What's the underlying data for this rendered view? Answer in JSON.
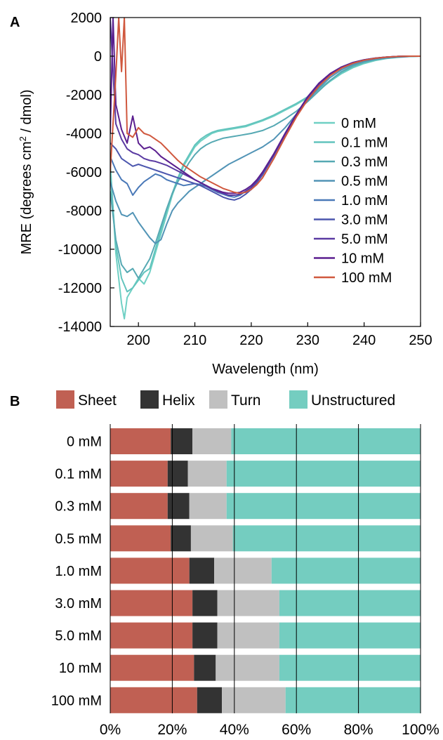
{
  "chart_data": [
    {
      "panel_label": "A",
      "type": "line",
      "xlabel": "Wavelength (nm)",
      "ylabel_main": "MRE (degrees cm",
      "ylabel_sup": "2",
      "ylabel_tail": " / dmol)",
      "xlim": [
        195,
        250
      ],
      "ylim": [
        -14000,
        2000
      ],
      "xticks": [
        200,
        210,
        220,
        230,
        240,
        250
      ],
      "yticks": [
        2000,
        0,
        -2000,
        -4000,
        -6000,
        -8000,
        -10000,
        -12000,
        -14000
      ],
      "grid": false,
      "legend_position": "right",
      "series": [
        {
          "name": "0 mM",
          "color": "#6fd0c4",
          "x": [
            195,
            196,
            197,
            197.5,
            198,
            199,
            200,
            201,
            202,
            203,
            204,
            205,
            206,
            207,
            208,
            209,
            210,
            211,
            212,
            213,
            214,
            215,
            216,
            217,
            218,
            219,
            220,
            222,
            224,
            226,
            228,
            230,
            232,
            234,
            236,
            238,
            240,
            242,
            244,
            246,
            248,
            250
          ],
          "y": [
            -5500,
            -10200,
            -12800,
            -13600,
            -12500,
            -12000,
            -11500,
            -11800,
            -11200,
            -10200,
            -9200,
            -8200,
            -7200,
            -6400,
            -5700,
            -5200,
            -4700,
            -4400,
            -4200,
            -4000,
            -3900,
            -3850,
            -3800,
            -3750,
            -3700,
            -3650,
            -3550,
            -3350,
            -3100,
            -2800,
            -2500,
            -2150,
            -1750,
            -1300,
            -900,
            -600,
            -380,
            -220,
            -120,
            -60,
            -20,
            0
          ]
        },
        {
          "name": "0.1 mM",
          "color": "#62c4bd",
          "x": [
            195,
            196,
            197,
            198,
            199,
            200,
            201,
            202,
            203,
            204,
            205,
            206,
            207,
            208,
            209,
            210,
            211,
            212,
            213,
            214,
            215,
            216,
            217,
            218,
            219,
            220,
            222,
            224,
            226,
            228,
            230,
            232,
            234,
            236,
            238,
            240,
            242,
            244,
            246,
            248,
            250
          ],
          "y": [
            -6000,
            -9800,
            -11500,
            -12200,
            -12000,
            -11600,
            -11200,
            -11000,
            -10000,
            -9000,
            -8000,
            -7100,
            -6300,
            -5600,
            -5100,
            -4600,
            -4300,
            -4100,
            -3950,
            -3850,
            -3800,
            -3750,
            -3700,
            -3650,
            -3600,
            -3500,
            -3300,
            -3050,
            -2750,
            -2450,
            -2100,
            -1700,
            -1250,
            -850,
            -560,
            -350,
            -200,
            -110,
            -50,
            -15,
            0
          ]
        },
        {
          "name": "0.3 mM",
          "color": "#56a9b3",
          "x": [
            195,
            196,
            197,
            198,
            199,
            200,
            201,
            202,
            203,
            204,
            205,
            206,
            207,
            208,
            209,
            210,
            211,
            212,
            213,
            214,
            215,
            216,
            217,
            218,
            219,
            220,
            222,
            224,
            226,
            228,
            230,
            232,
            234,
            236,
            238,
            240,
            242,
            244,
            246,
            248,
            250
          ],
          "y": [
            -7000,
            -9500,
            -10800,
            -11200,
            -11000,
            -11500,
            -11000,
            -10500,
            -9700,
            -8800,
            -7900,
            -7100,
            -6500,
            -6000,
            -5500,
            -5100,
            -4800,
            -4600,
            -4450,
            -4350,
            -4250,
            -4200,
            -4150,
            -4100,
            -4050,
            -4000,
            -3850,
            -3600,
            -3250,
            -2850,
            -2350,
            -1800,
            -1250,
            -800,
            -500,
            -300,
            -170,
            -90,
            -40,
            -10,
            0
          ]
        },
        {
          "name": "0.5 mM",
          "color": "#5294b6",
          "x": [
            195,
            196,
            197,
            198,
            199,
            200,
            201,
            202,
            203,
            204,
            205,
            206,
            207,
            208,
            209,
            210,
            211,
            212,
            213,
            214,
            215,
            216,
            217,
            218,
            219,
            220,
            222,
            224,
            226,
            228,
            230,
            232,
            234,
            236,
            238,
            240,
            242,
            244,
            246,
            248,
            250
          ],
          "y": [
            -6500,
            -7500,
            -8200,
            -8300,
            -8100,
            -8600,
            -9000,
            -9400,
            -9700,
            -9500,
            -8700,
            -8000,
            -7600,
            -7300,
            -7000,
            -6800,
            -6600,
            -6400,
            -6200,
            -6000,
            -5800,
            -5600,
            -5450,
            -5300,
            -5150,
            -5000,
            -4700,
            -4300,
            -3700,
            -3000,
            -2300,
            -1650,
            -1100,
            -700,
            -430,
            -260,
            -150,
            -80,
            -35,
            -10,
            0
          ]
        },
        {
          "name": "1.0 mM",
          "color": "#4a79b8",
          "x": [
            195,
            196,
            197,
            198,
            199,
            200,
            201,
            202,
            203,
            204,
            205,
            206,
            207,
            208,
            209,
            210,
            211,
            212,
            213,
            214,
            215,
            216,
            217,
            218,
            219,
            220,
            221,
            222,
            224,
            226,
            228,
            230,
            232,
            234,
            236,
            238,
            240,
            242,
            244,
            246,
            248,
            250
          ],
          "y": [
            -5200,
            -5900,
            -6400,
            -6600,
            -7200,
            -6800,
            -6500,
            -6300,
            -6100,
            -6200,
            -6400,
            -6500,
            -6600,
            -6700,
            -6650,
            -6600,
            -6650,
            -6750,
            -6900,
            -7050,
            -7150,
            -7250,
            -7300,
            -7200,
            -7000,
            -6800,
            -6500,
            -6100,
            -5100,
            -4000,
            -3000,
            -2100,
            -1400,
            -900,
            -560,
            -330,
            -190,
            -100,
            -45,
            -15,
            0,
            0
          ]
        },
        {
          "name": "3.0 mM",
          "color": "#4c56ae",
          "x": [
            195,
            196,
            197,
            198,
            199,
            200,
            201,
            202,
            203,
            204,
            205,
            206,
            207,
            208,
            209,
            210,
            211,
            212,
            213,
            214,
            215,
            216,
            217,
            218,
            219,
            220,
            221,
            222,
            224,
            226,
            228,
            230,
            232,
            234,
            236,
            238,
            240,
            242,
            244,
            246,
            248,
            250
          ],
          "y": [
            -4500,
            -4800,
            -5300,
            -5500,
            -5700,
            -5600,
            -5700,
            -5800,
            -5900,
            -6000,
            -6100,
            -6200,
            -6300,
            -6400,
            -6500,
            -6600,
            -6700,
            -6850,
            -7000,
            -7150,
            -7300,
            -7400,
            -7450,
            -7350,
            -7150,
            -6900,
            -6550,
            -6150,
            -5150,
            -4050,
            -3050,
            -2150,
            -1450,
            -950,
            -590,
            -350,
            -200,
            -110,
            -50,
            -15,
            0,
            0
          ]
        },
        {
          "name": "5.0 mM",
          "color": "#5a3aa2",
          "x": [
            195,
            196,
            197,
            198,
            199,
            200,
            201,
            202,
            203,
            204,
            205,
            206,
            207,
            208,
            209,
            210,
            211,
            212,
            213,
            214,
            215,
            216,
            217,
            218,
            219,
            220,
            221,
            222,
            224,
            226,
            228,
            230,
            232,
            234,
            236,
            238,
            240,
            242,
            244,
            246,
            248,
            250
          ],
          "y": [
            2000,
            -3500,
            -4300,
            -4800,
            -5000,
            -5100,
            -5300,
            -5400,
            -5450,
            -5550,
            -5650,
            -5800,
            -5950,
            -6100,
            -6250,
            -6400,
            -6550,
            -6700,
            -6850,
            -7000,
            -7100,
            -7200,
            -7200,
            -7150,
            -7000,
            -6800,
            -6450,
            -6050,
            -5100,
            -4050,
            -3050,
            -2150,
            -1450,
            -950,
            -590,
            -350,
            -200,
            -110,
            -50,
            -15,
            0,
            0
          ]
        },
        {
          "name": "10 mM",
          "color": "#5b1f8f",
          "x": [
            195,
            195.5,
            196,
            197,
            198,
            199,
            200,
            201,
            202,
            203,
            204,
            205,
            206,
            207,
            208,
            209,
            210,
            211,
            212,
            213,
            214,
            215,
            216,
            217,
            218,
            219,
            220,
            221,
            222,
            224,
            226,
            228,
            230,
            232,
            234,
            236,
            238,
            240,
            242,
            244,
            246,
            248,
            250
          ],
          "y": [
            -4000,
            2000,
            -2500,
            -3800,
            -4500,
            -3100,
            -4500,
            -4800,
            -4700,
            -4900,
            -5200,
            -5400,
            -5600,
            -5800,
            -6000,
            -6200,
            -6400,
            -6550,
            -6700,
            -6850,
            -6950,
            -7050,
            -7100,
            -7100,
            -7050,
            -6900,
            -6700,
            -6400,
            -6000,
            -5050,
            -4000,
            -3000,
            -2100,
            -1400,
            -900,
            -560,
            -330,
            -190,
            -100,
            -45,
            -15,
            0,
            0
          ]
        },
        {
          "name": "100 mM",
          "color": "#d0583e",
          "x": [
            195,
            195.5,
            196,
            196.5,
            197,
            197.5,
            198,
            199,
            200,
            201,
            202,
            203,
            204,
            205,
            206,
            207,
            208,
            209,
            210,
            211,
            212,
            213,
            214,
            215,
            216,
            217,
            218,
            219,
            220,
            221,
            222,
            224,
            226,
            228,
            230,
            232,
            234,
            236,
            238,
            240,
            242,
            244,
            246,
            248,
            250
          ],
          "y": [
            -6000,
            -3500,
            -1000,
            2000,
            -800,
            2000,
            -4000,
            -4200,
            -3700,
            -4000,
            -4100,
            -4300,
            -4500,
            -4800,
            -5100,
            -5400,
            -5650,
            -5850,
            -6050,
            -6250,
            -6400,
            -6550,
            -6700,
            -6850,
            -6950,
            -7050,
            -7100,
            -7050,
            -6900,
            -6650,
            -6300,
            -5300,
            -4200,
            -3150,
            -2250,
            -1550,
            -1000,
            -620,
            -370,
            -210,
            -110,
            -50,
            -15,
            0,
            0
          ]
        }
      ]
    },
    {
      "panel_label": "B",
      "type": "bar",
      "orientation": "horizontal",
      "stacked": true,
      "categories": [
        "0 mM",
        "0.1 mM",
        "0.3 mM",
        "0.5 mM",
        "1.0 mM",
        "3.0 mM",
        "5.0 mM",
        "10 mM",
        "100 mM"
      ],
      "xticks": [
        "0%",
        "20%",
        "40%",
        "60%",
        "80%",
        "100%"
      ],
      "xlim": [
        0,
        100
      ],
      "grid": true,
      "legend_position": "top",
      "series": [
        {
          "name": "Sheet",
          "color": "#c06053",
          "values": [
            19.5,
            18.5,
            18.5,
            19.5,
            25.5,
            26.5,
            26.5,
            27,
            28
          ]
        },
        {
          "name": "Helix",
          "color": "#333333",
          "values": [
            7,
            6.5,
            7,
            6.5,
            8,
            8,
            8,
            7,
            8
          ]
        },
        {
          "name": "Turn",
          "color": "#c0c0c0",
          "values": [
            12.5,
            12.5,
            12,
            13.5,
            18.5,
            20,
            20,
            20.5,
            20.5
          ]
        },
        {
          "name": "Unstructured",
          "color": "#74cdc0",
          "values": [
            61,
            62.5,
            62.5,
            60.5,
            48,
            45.5,
            45.5,
            45.5,
            43.5
          ]
        }
      ]
    }
  ]
}
